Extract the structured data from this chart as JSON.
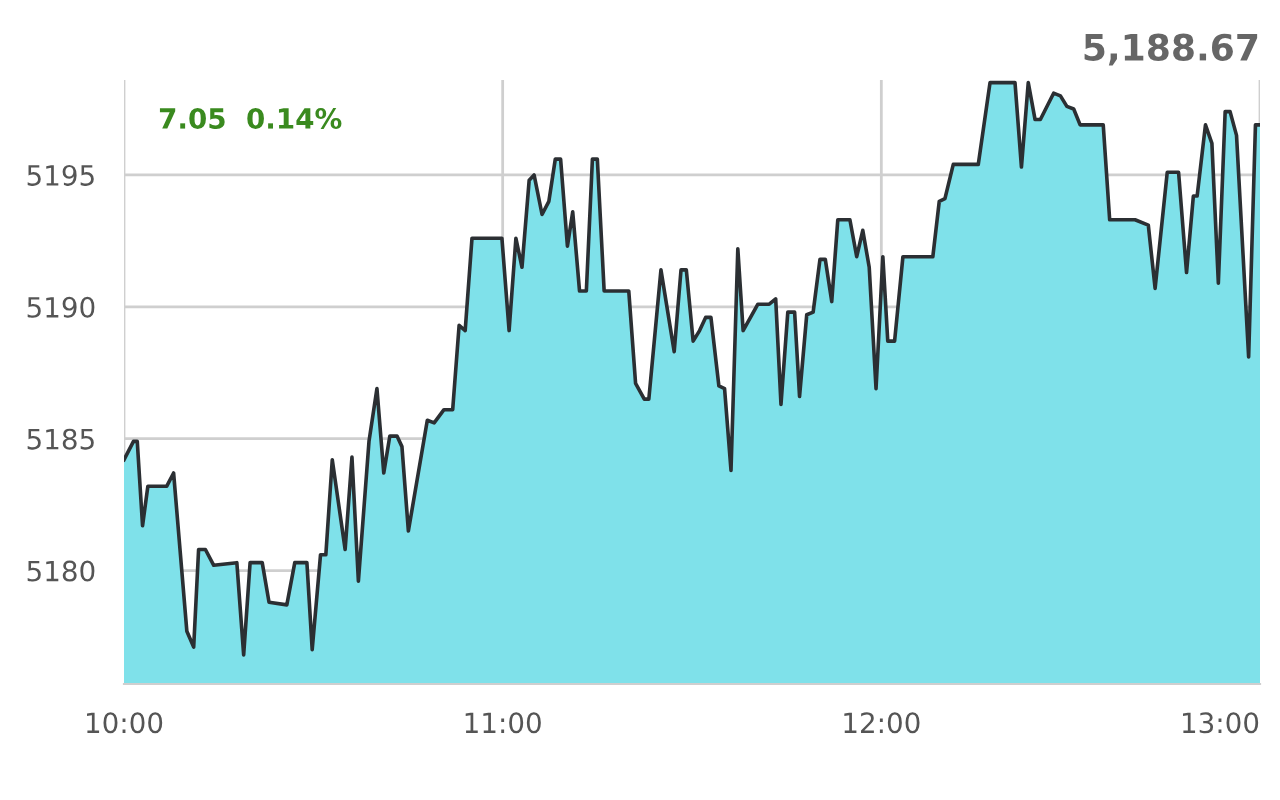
{
  "chart_data": {
    "type": "area",
    "x": [
      10.0,
      10.025,
      10.035,
      10.049,
      10.063,
      10.113,
      10.131,
      10.166,
      10.184,
      10.197,
      10.215,
      10.237,
      10.298,
      10.316,
      10.333,
      10.365,
      10.383,
      10.43,
      10.451,
      10.483,
      10.497,
      10.519,
      10.533,
      10.55,
      10.584,
      10.602,
      10.619,
      10.647,
      10.668,
      10.686,
      10.702,
      10.721,
      10.734,
      10.751,
      10.801,
      10.819,
      10.845,
      10.868,
      10.885,
      10.901,
      10.919,
      10.998,
      11.017,
      11.035,
      11.051,
      11.07,
      11.083,
      11.104,
      11.122,
      11.139,
      11.153,
      11.171,
      11.185,
      11.203,
      11.221,
      11.237,
      11.25,
      11.268,
      11.333,
      11.351,
      11.374,
      11.386,
      11.418,
      11.453,
      11.471,
      11.485,
      11.503,
      11.52,
      11.536,
      11.55,
      11.571,
      11.586,
      11.603,
      11.621,
      11.635,
      11.674,
      11.704,
      11.721,
      11.735,
      11.753,
      11.771,
      11.784,
      11.803,
      11.82,
      11.838,
      11.852,
      11.869,
      11.885,
      11.917,
      11.935,
      11.951,
      11.968,
      11.986,
      12.004,
      12.017,
      12.035,
      12.057,
      12.136,
      12.153,
      12.168,
      12.19,
      12.256,
      12.287,
      12.353,
      12.37,
      12.388,
      12.406,
      12.42,
      12.455,
      12.473,
      12.49,
      12.508,
      12.525,
      12.586,
      12.603,
      12.67,
      12.705,
      12.723,
      12.755,
      12.785,
      12.806,
      12.824,
      12.834,
      12.856,
      12.873,
      12.89,
      12.908,
      12.921,
      12.938,
      12.97,
      12.988,
      13.0
    ],
    "series": [
      {
        "color": "#7fe1ea",
        "values": [
          5184.2,
          5184.9,
          5184.9,
          5181.7,
          5183.2,
          5183.2,
          5183.7,
          5177.7,
          5177.1,
          5180.8,
          5180.8,
          5180.2,
          5180.3,
          5176.8,
          5180.3,
          5180.3,
          5178.8,
          5178.7,
          5180.3,
          5180.3,
          5177.0,
          5180.6,
          5180.6,
          5184.2,
          5180.8,
          5184.3,
          5179.6,
          5184.9,
          5186.9,
          5183.7,
          5185.1,
          5185.1,
          5184.7,
          5181.5,
          5185.7,
          5185.6,
          5186.1,
          5186.1,
          5189.3,
          5189.1,
          5192.6,
          5192.6,
          5189.1,
          5192.6,
          5191.5,
          5194.8,
          5195.0,
          5193.5,
          5194.0,
          5195.6,
          5195.6,
          5192.3,
          5193.6,
          5190.6,
          5190.6,
          5195.6,
          5195.6,
          5190.6,
          5190.6,
          5187.1,
          5186.5,
          5186.5,
          5191.4,
          5188.3,
          5191.4,
          5191.4,
          5188.7,
          5189.1,
          5189.6,
          5189.6,
          5187.0,
          5186.9,
          5183.8,
          5192.2,
          5189.1,
          5190.1,
          5190.1,
          5190.3,
          5186.3,
          5189.8,
          5189.8,
          5186.6,
          5189.7,
          5189.8,
          5191.8,
          5191.8,
          5190.2,
          5193.3,
          5193.3,
          5191.9,
          5192.9,
          5191.5,
          5186.9,
          5191.9,
          5188.7,
          5188.7,
          5191.9,
          5191.9,
          5194.0,
          5194.1,
          5195.4,
          5195.4,
          5198.5,
          5198.5,
          5195.3,
          5198.5,
          5197.1,
          5197.1,
          5198.1,
          5198.0,
          5197.6,
          5197.5,
          5196.9,
          5196.9,
          5193.3,
          5193.3,
          5193.1,
          5190.7,
          5195.1,
          5195.1,
          5191.3,
          5194.2,
          5194.2,
          5196.9,
          5196.2,
          5190.9,
          5197.4,
          5197.4,
          5196.5,
          5188.1,
          5196.9,
          5196.9
        ]
      }
    ],
    "xlim": [
      10,
      13
    ],
    "xticks": [
      {
        "value": 10,
        "label": "10:00"
      },
      {
        "value": 11,
        "label": "11:00"
      },
      {
        "value": 12,
        "label": "12:00"
      },
      {
        "value": 13,
        "label": "13:00"
      }
    ],
    "ylim": [
      5175.7,
      5198.6
    ],
    "yticks": [
      5180,
      5185,
      5190,
      5195
    ],
    "grid": true,
    "annotations": [
      "7.05  0.14%",
      "5,188.67"
    ]
  }
}
